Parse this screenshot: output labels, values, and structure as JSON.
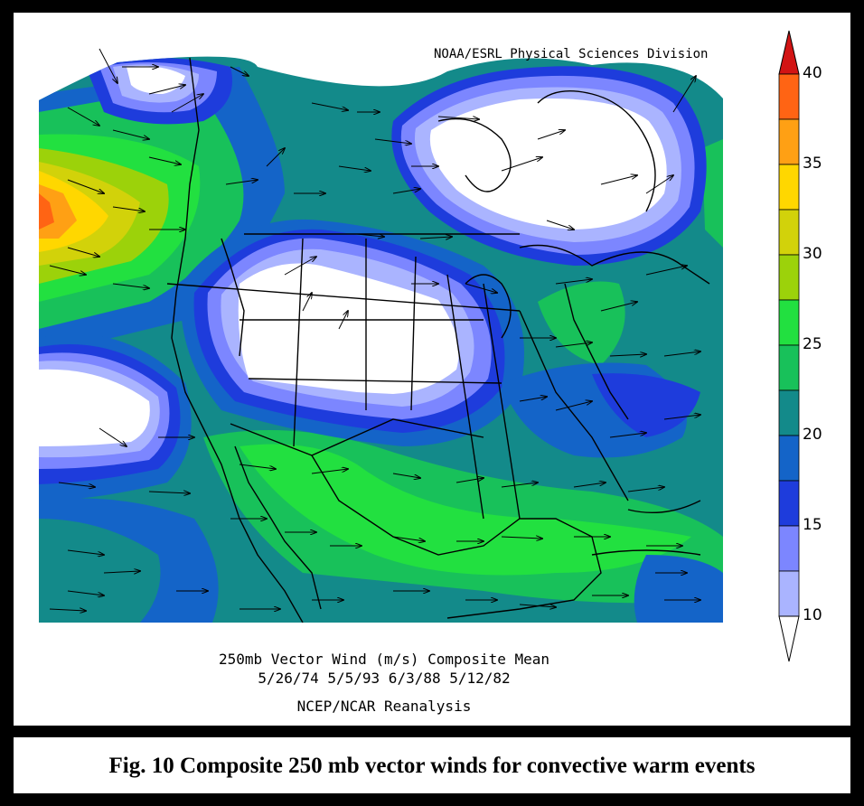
{
  "credit": "NOAA/ESRL Physical Sciences Division",
  "title_line1": "250mb Vector Wind (m/s) Composite Mean",
  "title_line2": "5/26/74 5/5/93 6/3/88 5/12/82",
  "title_line3": "NCEP/NCAR Reanalysis",
  "caption": "Fig. 10 Composite 250 mb vector winds for convective warm events",
  "colorbar": {
    "labels": [
      "10",
      "15",
      "20",
      "25",
      "30",
      "35",
      "40"
    ],
    "levels": [
      {
        "min": 10,
        "color": "#ffffff"
      },
      {
        "min": 10,
        "color": "#aab4ff"
      },
      {
        "min": 12.5,
        "color": "#7c86ff"
      },
      {
        "min": 15,
        "color": "#1e3cdc"
      },
      {
        "min": 17.5,
        "color": "#1464c8"
      },
      {
        "min": 20,
        "color": "#138a8a"
      },
      {
        "min": 22.5,
        "color": "#18c15a"
      },
      {
        "min": 25,
        "color": "#22e040"
      },
      {
        "min": 27.5,
        "color": "#9cd20a"
      },
      {
        "min": 30,
        "color": "#d2d20a"
      },
      {
        "min": 32.5,
        "color": "#ffd700"
      },
      {
        "min": 35,
        "color": "#ffa014"
      },
      {
        "min": 37.5,
        "color": "#ff6414"
      },
      {
        "min": 40,
        "color": "#d21414"
      }
    ]
  }
}
